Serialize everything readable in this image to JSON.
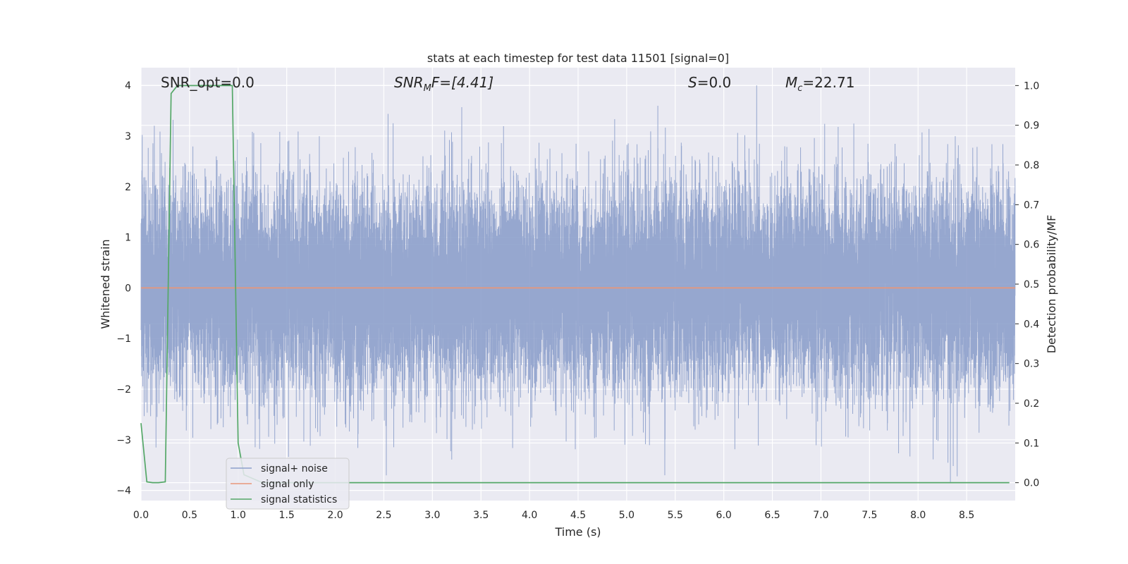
{
  "chart_data": {
    "type": "line",
    "title": "stats at each timestep for test data 11501 [signal=0]",
    "xlabel": "Time (s)",
    "ylabel": "Whitened strain",
    "ylabel_right": "Detection probability/MF",
    "xlim": [
      0.0,
      9.0
    ],
    "ylim": [
      -4.2,
      4.35
    ],
    "ylim_right": [
      -0.045,
      1.045
    ],
    "x_ticks": [
      "0.0",
      "0.5",
      "1.0",
      "1.5",
      "2.0",
      "2.5",
      "3.0",
      "3.5",
      "4.0",
      "4.5",
      "5.0",
      "5.5",
      "6.0",
      "6.5",
      "7.0",
      "7.5",
      "8.0",
      "8.5"
    ],
    "y_ticks": [
      "4",
      "3",
      "2",
      "1",
      "0",
      "−1",
      "−2",
      "−3",
      "−4"
    ],
    "y_ticks_right": [
      "1.0",
      "0.9",
      "0.8",
      "0.7",
      "0.6",
      "0.5",
      "0.4",
      "0.3",
      "0.2",
      "0.1",
      "0.0"
    ],
    "grid": true,
    "legend_position": "lower-left",
    "annotations": {
      "snr_opt": "SNR_opt=0.0",
      "snr_mf_sym": "SNR",
      "snr_mf_sub": "M",
      "snr_mf_rest": "F=[4.41]",
      "s_sym": "S",
      "s_rest": "=0.0",
      "mc_sym": "M",
      "mc_sub": "c",
      "mc_rest": "=22.71"
    },
    "series": [
      {
        "name": "signal+ noise",
        "color": "#8da0cb",
        "kind": "noise",
        "sample_rate_hz": 2048,
        "envelope": [
          -4.0,
          4.0
        ]
      },
      {
        "name": "signal only",
        "color": "#e8967a",
        "axis": "left",
        "x": [
          0.0,
          9.0
        ],
        "y": [
          0.0,
          0.0
        ]
      },
      {
        "name": "signal statistics",
        "color": "#55a868",
        "axis": "right",
        "x": [
          0.0,
          0.06,
          0.12,
          0.18,
          0.25,
          0.31,
          0.375,
          0.5,
          0.625,
          0.75,
          0.875,
          0.94,
          1.0,
          1.06,
          1.25,
          2.0,
          4.0,
          6.0,
          8.0,
          8.94
        ],
        "y": [
          0.15,
          0.002,
          0.0,
          0.0,
          0.002,
          0.98,
          1.0,
          1.0,
          1.0,
          1.0,
          1.0,
          1.0,
          0.1,
          0.02,
          0.0,
          0.0,
          0.0,
          0.0,
          0.0,
          0.0
        ]
      }
    ]
  }
}
